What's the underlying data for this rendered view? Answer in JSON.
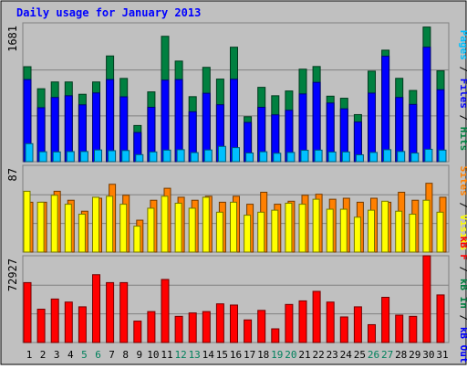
{
  "chart_data": [
    {
      "type": "bar",
      "title": "Daily usage for January 2013",
      "panel": "top",
      "categories": [
        "1",
        "2",
        "3",
        "4",
        "5",
        "6",
        "7",
        "8",
        "9",
        "10",
        "11",
        "12",
        "13",
        "14",
        "15",
        "16",
        "17",
        "18",
        "19",
        "20",
        "21",
        "22",
        "23",
        "24",
        "25",
        "26",
        "27",
        "28",
        "29",
        "30",
        "31"
      ],
      "weekend_days": [
        "5",
        "6",
        "12",
        "13",
        "19",
        "20",
        "26",
        "27"
      ],
      "ymax_label": "1681",
      "ylim": [
        0,
        1681
      ],
      "series": [
        {
          "name": "Hits",
          "color": "#008040",
          "values": [
            1150,
            883,
            965,
            965,
            816,
            965,
            1280,
            1008,
            438,
            845,
            1518,
            1218,
            787,
            1142,
            1000,
            1386,
            544,
            900,
            798,
            856,
            1120,
            1152,
            793,
            768,
            570,
            1096,
            1350,
            1009,
            862,
            1630,
            1100
          ]
        },
        {
          "name": "Files",
          "color": "#0000ff",
          "values": [
            994,
            653,
            777,
            798,
            688,
            832,
            994,
            785,
            353,
            658,
            987,
            994,
            604,
            828,
            689,
            998,
            475,
            658,
            567,
            622,
            820,
            960,
            710,
            640,
            480,
            830,
            1276,
            777,
            693,
            1386,
            871
          ]
        },
        {
          "name": "Pages",
          "color": "#00c0ff",
          "values": [
            218,
            120,
            118,
            122,
            123,
            142,
            133,
            135,
            85,
            118,
            140,
            145,
            110,
            142,
            185,
            170,
            105,
            120,
            102,
            112,
            138,
            140,
            117,
            118,
            83,
            112,
            145,
            123,
            104,
            150,
            140
          ]
        }
      ],
      "legend": [
        "Pages",
        "Files",
        "Hits"
      ],
      "legend_colors": [
        "#00c0ff",
        "#0000ff",
        "#008040"
      ]
    },
    {
      "type": "bar",
      "panel": "middle",
      "ymax_label": "87",
      "ylim": [
        0,
        87
      ],
      "series": [
        {
          "name": "Visits",
          "color": "#ffff00",
          "values": [
            61,
            50,
            57,
            48,
            38,
            55,
            56,
            48,
            26,
            44,
            56,
            49,
            44,
            55,
            40,
            50,
            37,
            40,
            42,
            49,
            48,
            53,
            43,
            43,
            35,
            42,
            51,
            41,
            38,
            52,
            40
          ]
        },
        {
          "name": "Sites",
          "color": "#ff8000",
          "values": [
            50,
            50,
            61,
            52,
            41,
            54,
            68,
            57,
            32,
            52,
            64,
            55,
            52,
            56,
            50,
            56,
            48,
            60,
            48,
            51,
            57,
            58,
            53,
            54,
            50,
            54,
            50,
            60,
            52,
            69,
            55
          ]
        }
      ],
      "legend": [
        "Sites",
        "Visits"
      ],
      "legend_colors": [
        "#ff8000",
        "#ffff00"
      ]
    },
    {
      "type": "bar",
      "panel": "bottom",
      "ymax_label": "72927",
      "ylim": [
        0,
        72927
      ],
      "series": [
        {
          "name": "KBytes",
          "color": "#ff0000",
          "values": [
            50350,
            28000,
            36550,
            34000,
            30000,
            57000,
            50350,
            50350,
            18000,
            26000,
            53000,
            22000,
            24850,
            26000,
            32500,
            31500,
            19000,
            27000,
            11500,
            32000,
            35000,
            43000,
            34000,
            21500,
            30000,
            15000,
            38000,
            23000,
            22000,
            72927,
            40000
          ]
        }
      ],
      "legend": [
        "kB F",
        "kB In",
        "kB Out"
      ],
      "legend_colors": [
        "#ff0000",
        "#008040",
        "#0000ff"
      ]
    }
  ]
}
